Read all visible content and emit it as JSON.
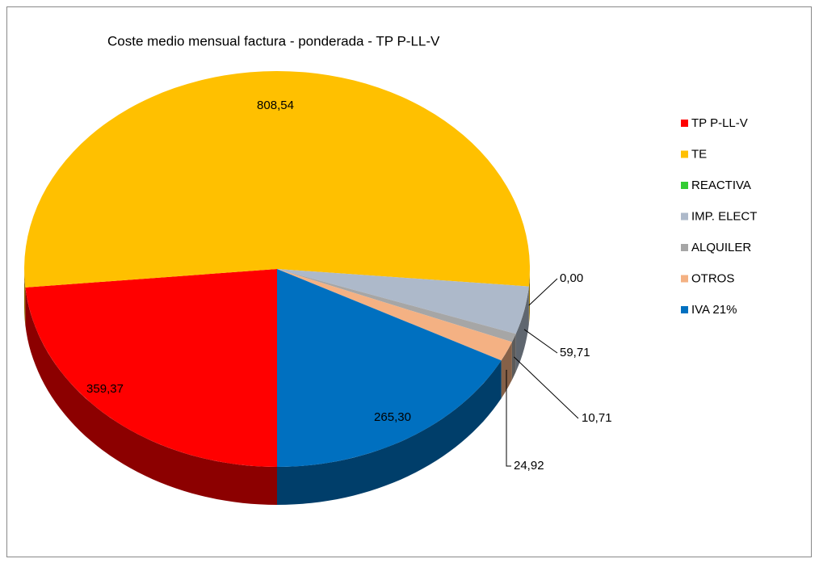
{
  "chart_data": {
    "type": "pie",
    "title": "Coste medio mensual factura - ponderada - TP P-LL-V",
    "categories": [
      "TP P-LL-V",
      "TE",
      "REACTIVA",
      "IMP. ELECT",
      "ALQUILER",
      "OTROS",
      "IVA 21%"
    ],
    "values": [
      359.37,
      808.54,
      0.0,
      59.71,
      10.71,
      24.92,
      265.3
    ],
    "value_labels": [
      "359,37",
      "808,54",
      "0,00",
      "59,71",
      "10,71",
      "24,92",
      "265,30"
    ],
    "colors": [
      "#ff0000",
      "#ffc000",
      "#33cc33",
      "#adb9ca",
      "#a6a6a6",
      "#f4b183",
      "#0070c0"
    ],
    "legend": "right"
  }
}
